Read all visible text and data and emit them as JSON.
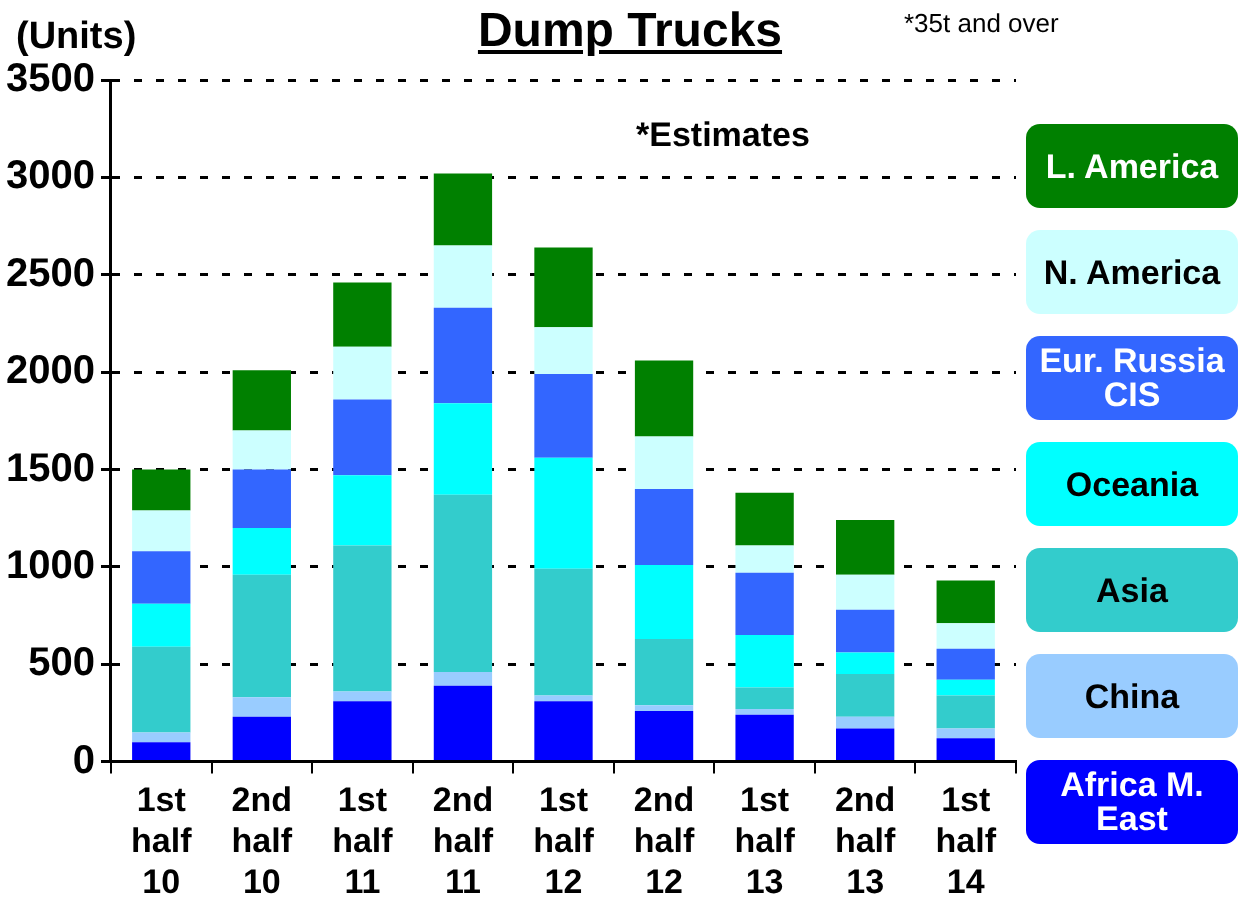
{
  "chart_data": {
    "type": "bar",
    "title": "Dump Trucks",
    "ylabel": "(Units)",
    "annotations": [
      "*35t and over",
      "*Estimates"
    ],
    "categories": [
      "1st half 10",
      "2nd half 10",
      "1st half 11",
      "2nd half 11",
      "1st half 12",
      "2nd half 12",
      "1st half 13",
      "2nd half 13",
      "1st half 14"
    ],
    "stacked": true,
    "ylim": [
      0,
      3500
    ],
    "yticks": [
      0,
      500,
      1000,
      1500,
      2000,
      2500,
      3000,
      3500
    ],
    "grid": "y",
    "legend": "right",
    "series": [
      {
        "name": "Africa M. East",
        "color": "#0000ff",
        "values": [
          100,
          230,
          310,
          390,
          310,
          260,
          240,
          170,
          120
        ]
      },
      {
        "name": "China",
        "color": "#99ccff",
        "values": [
          50,
          100,
          50,
          70,
          30,
          30,
          30,
          60,
          50
        ]
      },
      {
        "name": "Asia",
        "color": "#33cccc",
        "values": [
          440,
          630,
          750,
          910,
          650,
          340,
          110,
          220,
          170
        ]
      },
      {
        "name": "Oceania",
        "color": "#00ffff",
        "values": [
          220,
          240,
          360,
          470,
          570,
          380,
          270,
          110,
          80
        ]
      },
      {
        "name": "Eur. Russia CIS",
        "color": "#3366ff",
        "values": [
          270,
          300,
          390,
          490,
          430,
          390,
          320,
          220,
          160
        ]
      },
      {
        "name": "N. America",
        "color": "#ccffff",
        "values": [
          210,
          200,
          270,
          320,
          240,
          270,
          140,
          180,
          130
        ]
      },
      {
        "name": "L. America",
        "color": "#008000",
        "values": [
          210,
          310,
          330,
          370,
          410,
          390,
          270,
          280,
          220
        ]
      }
    ]
  }
}
